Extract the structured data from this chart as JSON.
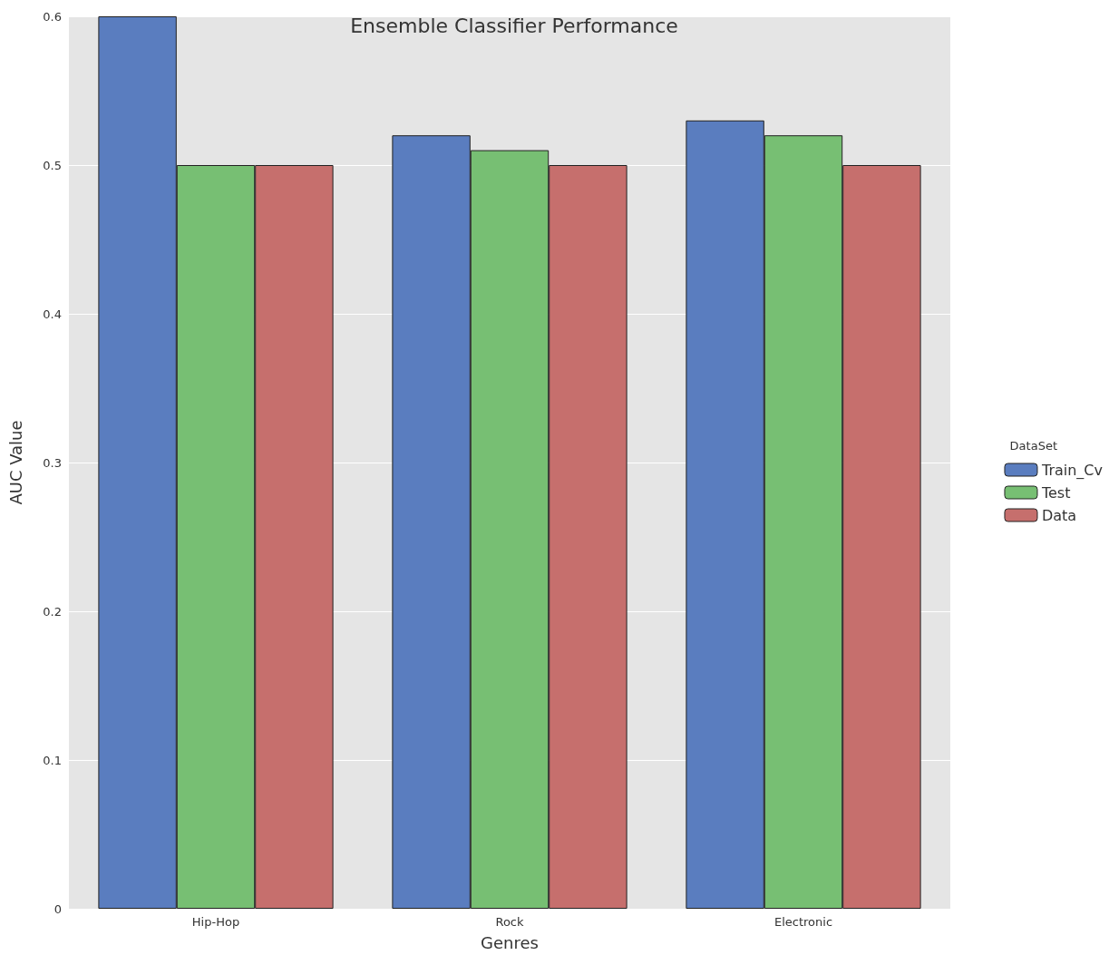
{
  "chart_data": {
    "type": "bar",
    "title": "Ensemble Classifier Performance",
    "xlabel": "Genres",
    "ylabel": "AUC Value",
    "legend_title": "DataSet",
    "categories": [
      "Hip-Hop",
      "Rock",
      "Electronic"
    ],
    "series": [
      {
        "name": "Train_Cv",
        "color": "#5a7dbf",
        "values": [
          0.6,
          0.52,
          0.53
        ]
      },
      {
        "name": "Test",
        "color": "#77bf73",
        "values": [
          0.5,
          0.51,
          0.52
        ]
      },
      {
        "name": "Data",
        "color": "#c66f6d",
        "values": [
          0.5,
          0.5,
          0.5
        ]
      }
    ],
    "ylim": [
      0,
      0.6
    ],
    "yticks": [
      0,
      0.1,
      0.2,
      0.3,
      0.4,
      0.5,
      0.6
    ],
    "grid": "y",
    "legend": "right"
  }
}
